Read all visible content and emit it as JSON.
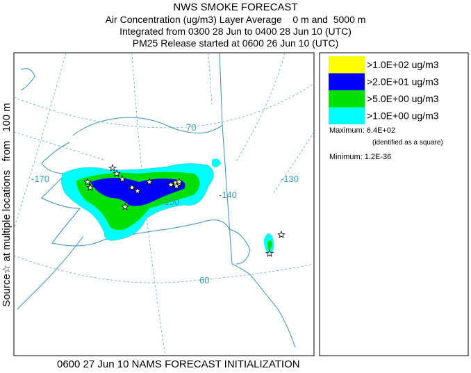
{
  "header": {
    "title": "NWS SMOKE FORECAST",
    "lines": [
      "Air Concentration (ug/m3) Layer Average    0 m and  5000 m",
      "Integrated from 0300 28 Jun to 0400 28 Jun 10 (UTC)",
      "PM25 Release started at 0600 26 Jun 10 (UTC)"
    ]
  },
  "side_label": "Source☆ at multiple locations   from   100 m",
  "map": {
    "labels": [
      "-170",
      "-150",
      "-140",
      "-130",
      "70",
      "60"
    ]
  },
  "legend": {
    "items": [
      {
        "label": ">1.0E+02 ug/m3",
        "color": "#ffff00"
      },
      {
        "label": ">2.0E+01 ug/m3",
        "color": "#0000ff"
      },
      {
        "label": ">5.0E+00 ug/m3",
        "color": "#00e000"
      },
      {
        "label": ">1.0E+00 ug/m3",
        "color": "#00ffff"
      }
    ],
    "maximum": "Maximum: 6.4E+02",
    "maximum_note": "(identified as a square)",
    "minimum": "Minimum: 1.2E-36"
  },
  "footer": "0600 27 Jun 10 NAMS FORECAST INITIALIZATION"
}
